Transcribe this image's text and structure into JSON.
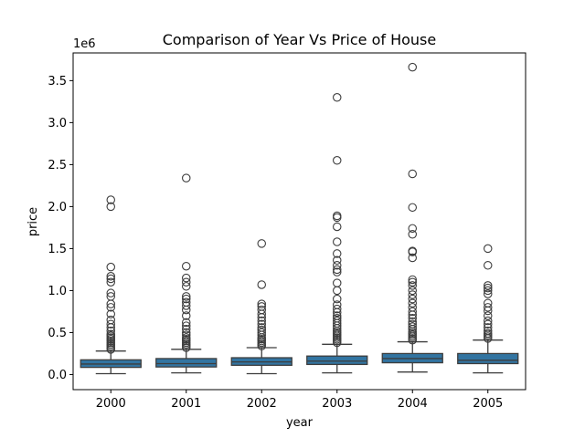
{
  "chart_data": {
    "type": "box",
    "title": "Comparison of Year Vs Price of House",
    "xlabel": "year",
    "ylabel": "price",
    "y_offset_label": "1e6",
    "ylim": [
      -0.18,
      3.83
    ],
    "yticks": [
      0.0,
      0.5,
      1.0,
      1.5,
      2.0,
      2.5,
      3.0,
      3.5
    ],
    "ytick_labels": [
      "0.0",
      "0.5",
      "1.0",
      "1.5",
      "2.0",
      "2.5",
      "3.0",
      "3.5"
    ],
    "box_color": "#3274a1",
    "categories": [
      "2000",
      "2001",
      "2002",
      "2003",
      "2004",
      "2005"
    ],
    "boxes": [
      {
        "category": "2000",
        "whisker_low": 0.01,
        "q1": 0.085,
        "median": 0.125,
        "q3": 0.175,
        "whisker_high": 0.28,
        "outliers": [
          0.3,
          0.32,
          0.34,
          0.36,
          0.38,
          0.4,
          0.42,
          0.44,
          0.46,
          0.48,
          0.52,
          0.56,
          0.6,
          0.65,
          0.72,
          0.8,
          0.84,
          0.93,
          0.97,
          1.1,
          1.14,
          1.17,
          1.28,
          2.0,
          2.08
        ]
      },
      {
        "category": "2001",
        "whisker_low": 0.02,
        "q1": 0.09,
        "median": 0.13,
        "q3": 0.19,
        "whisker_high": 0.3,
        "outliers": [
          0.32,
          0.34,
          0.36,
          0.38,
          0.4,
          0.42,
          0.44,
          0.47,
          0.5,
          0.54,
          0.58,
          0.62,
          0.7,
          0.77,
          0.82,
          0.86,
          0.9,
          0.93,
          1.05,
          1.1,
          1.15,
          1.29,
          2.34
        ]
      },
      {
        "category": "2002",
        "whisker_low": 0.01,
        "q1": 0.11,
        "median": 0.15,
        "q3": 0.2,
        "whisker_high": 0.32,
        "outliers": [
          0.34,
          0.36,
          0.38,
          0.4,
          0.42,
          0.44,
          0.47,
          0.5,
          0.53,
          0.56,
          0.6,
          0.64,
          0.68,
          0.72,
          0.77,
          0.81,
          0.84,
          1.07,
          1.56
        ]
      },
      {
        "category": "2003",
        "whisker_low": 0.02,
        "q1": 0.12,
        "median": 0.16,
        "q3": 0.22,
        "whisker_high": 0.36,
        "outliers": [
          0.38,
          0.4,
          0.42,
          0.44,
          0.46,
          0.48,
          0.5,
          0.52,
          0.55,
          0.58,
          0.61,
          0.64,
          0.67,
          0.7,
          0.74,
          0.78,
          0.83,
          0.9,
          1.0,
          1.09,
          1.22,
          1.25,
          1.3,
          1.36,
          1.44,
          1.58,
          1.76,
          1.87,
          1.89,
          2.55,
          3.3
        ]
      },
      {
        "category": "2004",
        "whisker_low": 0.03,
        "q1": 0.14,
        "median": 0.19,
        "q3": 0.25,
        "whisker_high": 0.39,
        "outliers": [
          0.41,
          0.43,
          0.45,
          0.47,
          0.49,
          0.51,
          0.54,
          0.57,
          0.6,
          0.63,
          0.67,
          0.71,
          0.75,
          0.8,
          0.85,
          0.9,
          0.95,
          1.0,
          1.06,
          1.1,
          1.13,
          1.39,
          1.46,
          1.47,
          1.67,
          1.74,
          1.99,
          2.39,
          3.66
        ]
      },
      {
        "category": "2005",
        "whisker_low": 0.02,
        "q1": 0.13,
        "median": 0.17,
        "q3": 0.25,
        "whisker_high": 0.41,
        "outliers": [
          0.43,
          0.45,
          0.47,
          0.49,
          0.52,
          0.56,
          0.6,
          0.64,
          0.7,
          0.76,
          0.8,
          0.85,
          0.96,
          1.0,
          1.03,
          1.06,
          1.3,
          1.5
        ]
      }
    ]
  }
}
